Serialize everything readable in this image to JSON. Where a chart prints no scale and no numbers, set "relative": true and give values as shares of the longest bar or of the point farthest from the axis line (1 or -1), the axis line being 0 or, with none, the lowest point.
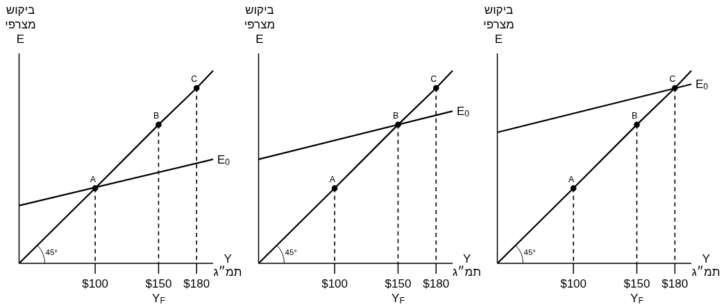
{
  "chart_data": [
    {
      "type": "line",
      "ylabel": "ביקוש מצרפי E",
      "xlabel": "Y תמ״ג",
      "relative": true,
      "xlim": [
        40,
        193
      ],
      "xticks": [
        {
          "value": 100,
          "label": "$100"
        },
        {
          "value": 150,
          "label": "$150"
        },
        {
          "value": 180,
          "label": "$180"
        }
      ],
      "legend": false,
      "series": [
        {
          "color": "#000000",
          "x": [
            40,
            100,
            150,
            180,
            193
          ],
          "values": [
            0,
            0.39,
            0.72,
            0.91,
            1
          ]
        },
        {
          "name": "E$_{0}$",
          "color": "#000000",
          "x": [
            40,
            193
          ],
          "values": [
            0.3,
            0.54
          ]
        },
        {
          "type": "lollipop",
          "marker": "circle",
          "line_style": "dashed",
          "color": "#000000",
          "x": [
            100,
            150,
            180
          ],
          "values": [
            0.39,
            0.72,
            0.91
          ]
        }
      ],
      "annotations": [
        {
          "text": "A",
          "x": 100,
          "y": 0.39
        },
        {
          "text": "B",
          "x": 150,
          "y": 0.72
        },
        {
          "text": "C",
          "x": 180,
          "y": 0.91
        },
        "45°",
        "Y$_{F}$"
      ]
    },
    {
      "type": "line",
      "ylabel": "ביקוש מצרפי E",
      "xlabel": "Y תמ״ג",
      "relative": true,
      "xlim": [
        40,
        193
      ],
      "xticks": [
        {
          "value": 100,
          "label": "$100"
        },
        {
          "value": 150,
          "label": "$150"
        },
        {
          "value": 180,
          "label": "$180"
        }
      ],
      "legend": false,
      "series": [
        {
          "color": "#000000",
          "x": [
            40,
            100,
            150,
            180,
            193
          ],
          "values": [
            0,
            0.39,
            0.72,
            0.91,
            1
          ]
        },
        {
          "name": "E$_{0}$",
          "color": "#000000",
          "x": [
            40,
            193
          ],
          "values": [
            0.54,
            0.79
          ]
        },
        {
          "type": "lollipop",
          "marker": "circle",
          "line_style": "dashed",
          "color": "#000000",
          "x": [
            100,
            150,
            180
          ],
          "values": [
            0.39,
            0.72,
            0.91
          ]
        }
      ],
      "annotations": [
        {
          "text": "A",
          "x": 100,
          "y": 0.39
        },
        {
          "text": "B",
          "x": 150,
          "y": 0.72
        },
        {
          "text": "C",
          "x": 180,
          "y": 0.91
        },
        "45°",
        "Y$_{F}$"
      ]
    },
    {
      "type": "line",
      "ylabel": "ביקוש מצרפי E",
      "xlabel": "Y תמ״ג",
      "relative": true,
      "xlim": [
        40,
        193
      ],
      "xticks": [
        {
          "value": 100,
          "label": "$100"
        },
        {
          "value": 150,
          "label": "$150"
        },
        {
          "value": 180,
          "label": "$180"
        }
      ],
      "legend": false,
      "series": [
        {
          "color": "#000000",
          "x": [
            40,
            100,
            150,
            180,
            193
          ],
          "values": [
            0,
            0.39,
            0.72,
            0.91,
            1
          ]
        },
        {
          "name": "E$_{0}$",
          "color": "#000000",
          "x": [
            40,
            193
          ],
          "values": [
            0.68,
            0.93
          ]
        },
        {
          "type": "lollipop",
          "marker": "circle",
          "line_style": "dashed",
          "color": "#000000",
          "x": [
            100,
            150,
            180
          ],
          "values": [
            0.39,
            0.72,
            0.91
          ]
        }
      ],
      "annotations": [
        {
          "text": "A",
          "x": 100,
          "y": 0.39
        },
        {
          "text": "B",
          "x": 150,
          "y": 0.72
        },
        {
          "text": "C",
          "x": 180,
          "y": 0.91
        },
        "45°",
        "Y$_{F}$"
      ]
    }
  ]
}
